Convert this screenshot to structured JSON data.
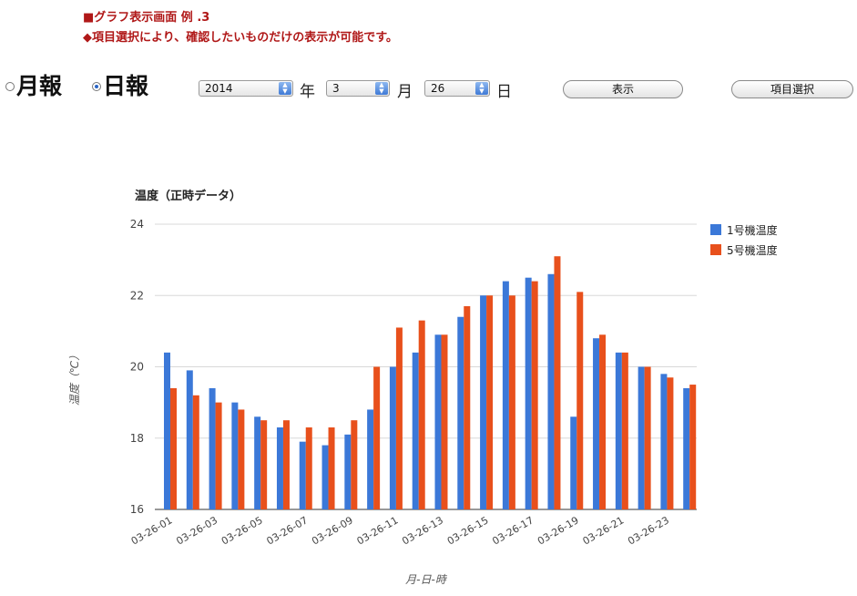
{
  "notes": {
    "line1": "■グラフ表示画面 例 .3",
    "line2": "◆項目選択により、確認したいものだけの表示が可能です。"
  },
  "report_type": {
    "monthly_label": "月報",
    "daily_label": "日報",
    "selected": "daily"
  },
  "date_select": {
    "year": "2014",
    "year_unit": "年",
    "month": "3",
    "month_unit": "月",
    "day": "26",
    "day_unit": "日"
  },
  "buttons": {
    "show_label": "表示",
    "item_select_label": "項目選択"
  },
  "colors": {
    "series1": "#3b78d8",
    "series2": "#e8501c",
    "note_red": "#b01818"
  },
  "chart_data": {
    "type": "bar",
    "title": "温度（正時データ）",
    "xlabel": "月-日-時",
    "ylabel": "温度（℃）",
    "ylim": [
      16,
      24
    ],
    "yticks": [
      16,
      18,
      20,
      22,
      24
    ],
    "grid": true,
    "legend_position": "top-right",
    "categories": [
      "03-26-01",
      "03-26-02",
      "03-26-03",
      "03-26-04",
      "03-26-05",
      "03-26-06",
      "03-26-07",
      "03-26-08",
      "03-26-09",
      "03-26-10",
      "03-26-11",
      "03-26-12",
      "03-26-13",
      "03-26-14",
      "03-26-15",
      "03-26-16",
      "03-26-17",
      "03-26-18",
      "03-26-19",
      "03-26-20",
      "03-26-21",
      "03-26-22",
      "03-26-23",
      "03-26-24"
    ],
    "tick_labels": [
      "03-26-01",
      "",
      "03-26-03",
      "",
      "03-26-05",
      "",
      "03-26-07",
      "",
      "03-26-09",
      "",
      "03-26-11",
      "",
      "03-26-13",
      "",
      "03-26-15",
      "",
      "03-26-17",
      "",
      "03-26-19",
      "",
      "03-26-21",
      "",
      "03-26-23",
      ""
    ],
    "series": [
      {
        "name": "1号機温度",
        "values": [
          20.4,
          19.9,
          19.4,
          19.0,
          18.6,
          18.3,
          17.9,
          17.8,
          18.1,
          18.8,
          20.0,
          20.4,
          20.9,
          21.4,
          22.0,
          22.4,
          22.5,
          22.6,
          18.6,
          20.8,
          20.4,
          20.0,
          19.8,
          19.4
        ]
      },
      {
        "name": "5号機温度",
        "values": [
          19.4,
          19.2,
          19.0,
          18.8,
          18.5,
          18.5,
          18.3,
          18.3,
          18.5,
          20.0,
          21.1,
          21.3,
          20.9,
          21.7,
          22.0,
          22.0,
          22.4,
          23.1,
          22.1,
          20.9,
          20.4,
          20.0,
          19.7,
          19.5
        ]
      }
    ]
  }
}
